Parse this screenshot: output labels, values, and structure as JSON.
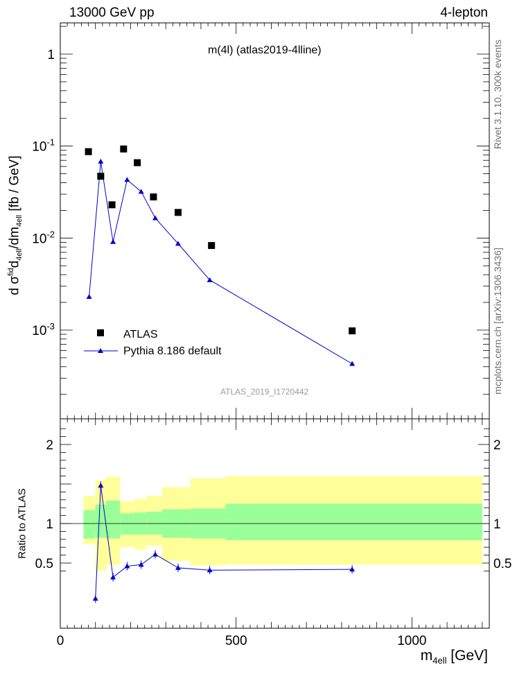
{
  "header": {
    "left": "13000 GeV pp",
    "right": "4-lepton"
  },
  "side": {
    "rivet": "Rivet 3.1.10,  300k events",
    "mcplots": "mcplots.cern.ch [arXiv:1306.3436]"
  },
  "watermark": "ATLAS_2019_I1720442",
  "colors": {
    "mc_line": "#0000cc",
    "data_marker": "#000000",
    "band_inner": "#99ff99",
    "band_outer": "#ffff99"
  },
  "chart_data": [
    {
      "type": "scatter",
      "title": "m(4l) (atlas2019-4lline)",
      "ylabel": "d σ^fid_4ell/dm_4ell [fb / GeV]",
      "xlim": [
        0,
        1220
      ],
      "ylim": [
        0.00018,
        2.2
      ],
      "yscale": "log",
      "yticks": [
        "10^-3",
        "10^-2",
        "10^-1",
        "1"
      ],
      "legend_position": "lower-left",
      "series": [
        {
          "name": "ATLAS",
          "style": "square-marker",
          "x": [
            80,
            115,
            147,
            180,
            219,
            265,
            335,
            430,
            830
          ],
          "y": [
            0.087,
            0.047,
            0.023,
            0.093,
            0.066,
            0.028,
            0.019,
            0.0083,
            0.00098
          ]
        },
        {
          "name": "Pythia 8.186 default",
          "style": "line-triangle",
          "x": [
            82,
            115,
            150,
            190,
            230,
            270,
            335,
            425,
            830
          ],
          "y": [
            0.0023,
            0.068,
            0.0091,
            0.043,
            0.032,
            0.0165,
            0.0087,
            0.0035,
            0.00043
          ]
        }
      ]
    },
    {
      "type": "line",
      "ylabel": "Ratio to ATLAS",
      "xlabel": "m_4ell [GeV]",
      "xlim": [
        0,
        1220
      ],
      "ylim": [
        0.35,
        2.3
      ],
      "xticks": [
        "0",
        "500",
        "1000"
      ],
      "yticks": [
        "0.5",
        "1",
        "2"
      ],
      "reference_line": 1,
      "bands": {
        "edges": [
          66,
          100,
          130,
          170,
          210,
          245,
          290,
          370,
          470,
          1200
        ],
        "inner_low": [
          0.81,
          0.82,
          0.81,
          0.86,
          0.86,
          0.86,
          0.82,
          0.81,
          0.79
        ],
        "inner_high": [
          1.17,
          1.24,
          1.29,
          1.13,
          1.14,
          1.15,
          1.18,
          1.19,
          1.25
        ],
        "outer_low": [
          0.74,
          0.4,
          0.48,
          0.7,
          0.67,
          0.72,
          0.53,
          0.47,
          0.48
        ],
        "outer_high": [
          1.35,
          1.55,
          1.59,
          1.28,
          1.31,
          1.35,
          1.46,
          1.57,
          1.6
        ]
      },
      "series": [
        {
          "name": "Pythia 8.186 default",
          "x": [
            100,
            115,
            150,
            190,
            230,
            270,
            335,
            425,
            830
          ],
          "y": [
            0.05,
            1.48,
            0.32,
            0.46,
            0.48,
            0.61,
            0.44,
            0.41,
            0.42
          ]
        }
      ]
    }
  ]
}
